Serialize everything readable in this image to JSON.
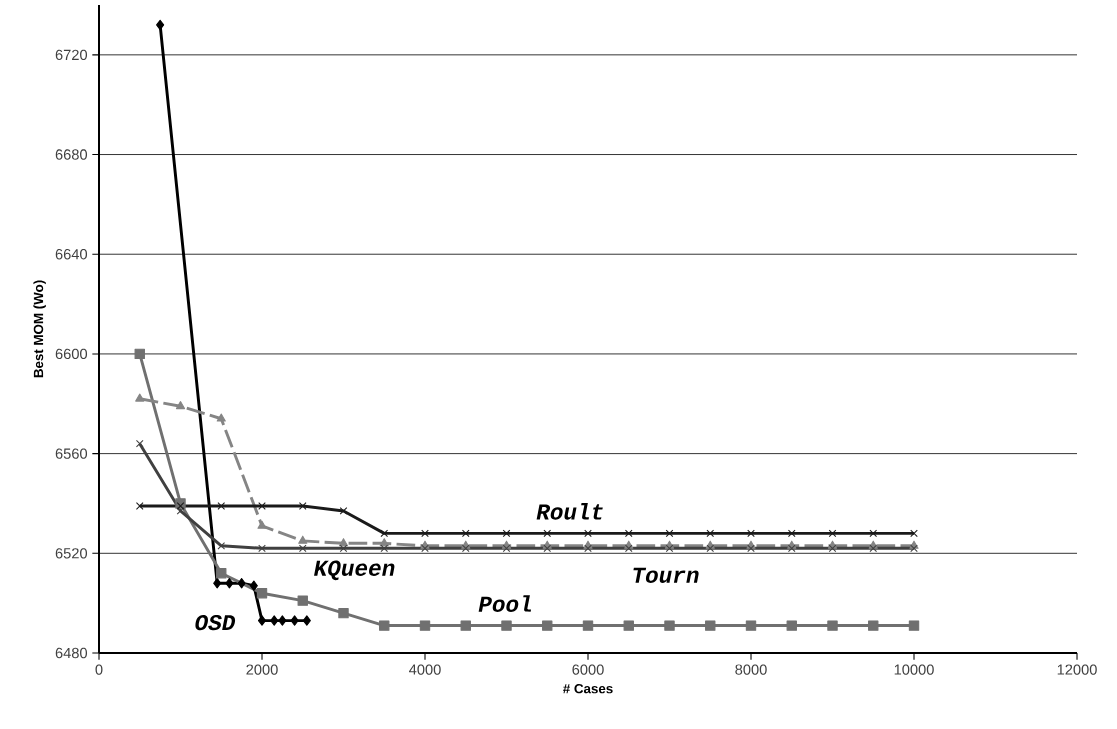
{
  "chart_data": {
    "type": "line",
    "xlabel": "# Cases",
    "ylabel": "Best MOM (Wo)",
    "xlim": [
      0,
      12000
    ],
    "ylim": [
      6480,
      6740
    ],
    "xticks": [
      0,
      2000,
      4000,
      6000,
      8000,
      10000,
      12000
    ],
    "yticks": [
      6480,
      6520,
      6560,
      6600,
      6640,
      6680,
      6720
    ],
    "grid": "y",
    "series": [
      {
        "color": "#000000",
        "marker": "diamond",
        "x": [
          750,
          1450,
          1600,
          1750,
          1900,
          2000,
          2150,
          2250,
          2400,
          2550
        ],
        "values": [
          6732,
          6508,
          6508,
          6508,
          6507,
          6493,
          6493,
          6493,
          6493,
          6493
        ]
      },
      {
        "color": "#707070",
        "marker": "square",
        "x": [
          500,
          1000,
          1500,
          2000,
          2500,
          3000,
          3500,
          4000,
          4500,
          5000,
          5500,
          6000,
          6500,
          7000,
          7500,
          8000,
          8500,
          9000,
          9500,
          10000
        ],
        "values": [
          6600,
          6540,
          6512,
          6504,
          6501,
          6496,
          6491,
          6491,
          6491,
          6491,
          6491,
          6491,
          6491,
          6491,
          6491,
          6491,
          6491,
          6491,
          6491,
          6491
        ]
      },
      {
        "color": "#858585",
        "marker": "triangle",
        "line_style": "dashed",
        "x": [
          500,
          1000,
          1500,
          2000,
          2500,
          3000,
          3500,
          4000,
          4500,
          5000,
          5500,
          6000,
          6500,
          7000,
          7500,
          8000,
          8500,
          9000,
          9500,
          10000
        ],
        "values": [
          6582,
          6579,
          6574,
          6531,
          6525,
          6524,
          6524,
          6523,
          6523,
          6523,
          6523,
          6523,
          6523,
          6523,
          6523,
          6523,
          6523,
          6523,
          6523,
          6523
        ]
      },
      {
        "color": "#404040",
        "marker": "cross",
        "x": [
          500,
          1000,
          1500,
          2000,
          2500,
          3000,
          3500,
          4000,
          4500,
          5000,
          5500,
          6000,
          6500,
          7000,
          7500,
          8000,
          8500,
          9000,
          9500,
          10000
        ],
        "values": [
          6564,
          6537,
          6523,
          6522,
          6522,
          6522,
          6522,
          6522,
          6522,
          6522,
          6522,
          6522,
          6522,
          6522,
          6522,
          6522,
          6522,
          6522,
          6522,
          6522
        ]
      },
      {
        "color": "#1a1a1a",
        "marker": "cross",
        "x": [
          500,
          1000,
          1500,
          2000,
          2500,
          3000,
          3500,
          4000,
          4500,
          5000,
          5500,
          6000,
          6500,
          7000,
          7500,
          8000,
          8500,
          9000,
          9500,
          10000
        ],
        "values": [
          6539,
          6539,
          6539,
          6539,
          6539,
          6537,
          6528,
          6528,
          6528,
          6528,
          6528,
          6528,
          6528,
          6528,
          6528,
          6528,
          6528,
          6528,
          6528,
          6528
        ]
      }
    ],
    "annotations": [
      {
        "text": "Roult",
        "x": 5500,
        "y": 6528
      },
      {
        "text": "KQueen",
        "x": 3000,
        "y": 6524
      },
      {
        "text": "Tourn",
        "x": 7000,
        "y": 6522
      },
      {
        "text": "Pool",
        "x": 5000,
        "y": 6491
      },
      {
        "text": "OSD",
        "x": 2000,
        "y": 6493
      }
    ]
  }
}
